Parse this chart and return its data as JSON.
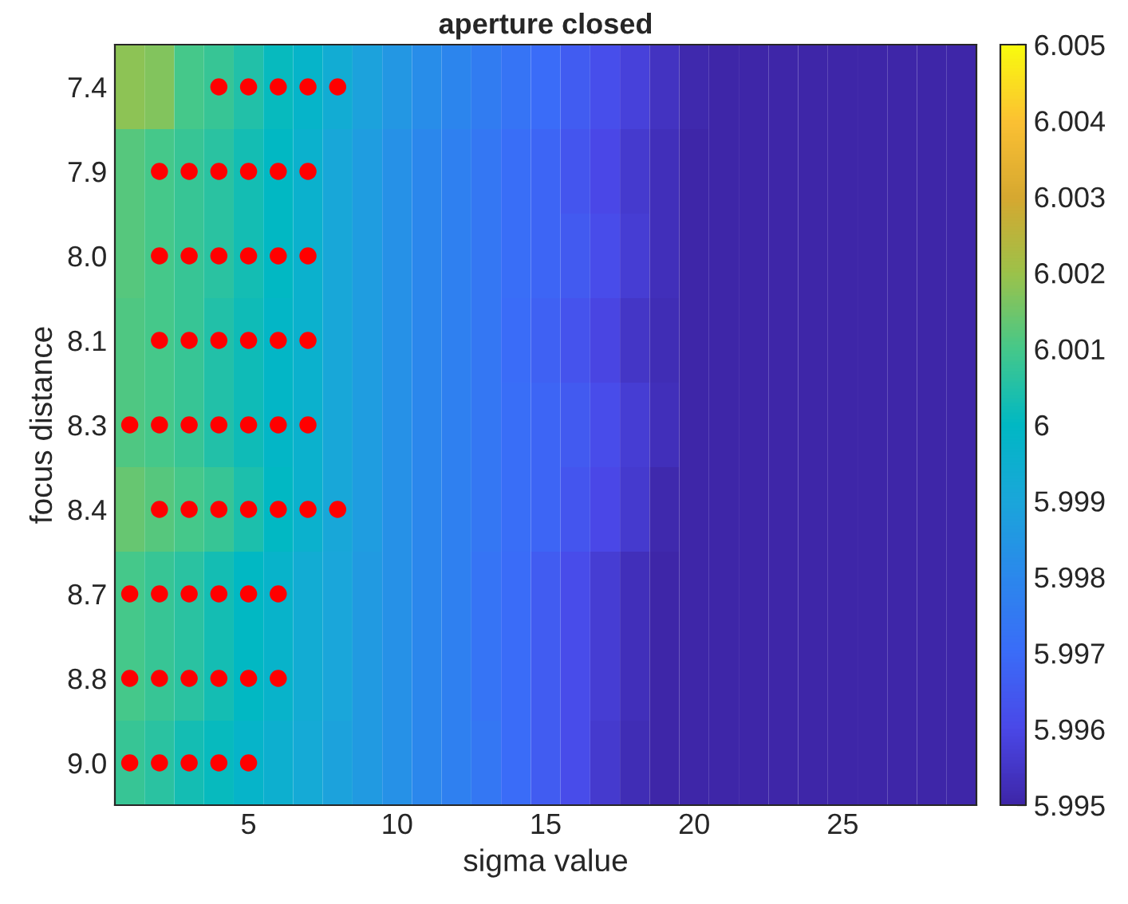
{
  "chart_data": {
    "type": "heatmap",
    "title": "aperture closed",
    "xlabel": "sigma value",
    "ylabel": "focus distance",
    "x": [
      1,
      2,
      3,
      4,
      5,
      6,
      7,
      8,
      9,
      10,
      11,
      12,
      13,
      14,
      15,
      16,
      17,
      18,
      19,
      20,
      21,
      22,
      23,
      24,
      25,
      26,
      27,
      28,
      29
    ],
    "xlim": [
      0.5,
      29.5
    ],
    "xticks": [
      5,
      10,
      15,
      20,
      25
    ],
    "orientation": "horizontal",
    "y_categories": [
      "7.4",
      "7.9",
      "8.0",
      "8.1",
      "8.3",
      "8.4",
      "8.7",
      "8.8",
      "9.0"
    ],
    "cells": [
      [
        6.0018,
        6.0017,
        6.001,
        6.0008,
        6.0005,
        6.0001,
        5.9998,
        5.9993,
        5.9989,
        5.9985,
        5.9982,
        5.9979,
        5.9976,
        5.9973,
        5.997,
        5.9966,
        5.9962,
        5.9958,
        5.9954,
        5.9951,
        5.995,
        5.995,
        5.995,
        5.995,
        5.995,
        5.995,
        5.995,
        5.995,
        5.995
      ],
      [
        6.0012,
        6.001,
        6.0008,
        6.0006,
        6.0003,
        6.0,
        5.9996,
        5.9991,
        5.9987,
        5.9983,
        5.998,
        5.9977,
        5.9974,
        5.9971,
        5.9968,
        5.9964,
        5.996,
        5.9956,
        5.9953,
        5.995,
        5.995,
        5.995,
        5.995,
        5.995,
        5.995,
        5.995,
        5.995,
        5.995,
        5.995
      ],
      [
        6.0012,
        6.001,
        6.0008,
        6.0006,
        6.0003,
        6.0,
        5.9996,
        5.9991,
        5.9987,
        5.9983,
        5.998,
        5.9977,
        5.9974,
        5.9971,
        5.9968,
        5.9965,
        5.9961,
        5.9957,
        5.9953,
        5.995,
        5.995,
        5.995,
        5.995,
        5.995,
        5.995,
        5.995,
        5.995,
        5.995,
        5.995
      ],
      [
        6.0011,
        6.001,
        6.0008,
        6.0005,
        6.0002,
        5.9999,
        5.9996,
        5.9991,
        5.9987,
        5.9983,
        5.998,
        5.9977,
        5.9974,
        5.997,
        5.9967,
        5.9963,
        5.9959,
        5.9955,
        5.9952,
        5.995,
        5.995,
        5.995,
        5.995,
        5.995,
        5.995,
        5.995,
        5.995,
        5.995,
        5.995
      ],
      [
        6.0011,
        6.001,
        6.0008,
        6.0005,
        6.0002,
        5.9999,
        5.9996,
        5.9991,
        5.9987,
        5.9983,
        5.998,
        5.9977,
        5.9974,
        5.9971,
        5.9968,
        5.9965,
        5.9961,
        5.9957,
        5.9953,
        5.995,
        5.995,
        5.995,
        5.995,
        5.995,
        5.995,
        5.995,
        5.995,
        5.995,
        5.995
      ],
      [
        6.0014,
        6.0012,
        6.001,
        6.0008,
        6.0004,
        6.0,
        5.9996,
        5.9991,
        5.9987,
        5.9983,
        5.998,
        5.9977,
        5.9974,
        5.9971,
        5.9968,
        5.9964,
        5.996,
        5.9956,
        5.9951,
        5.995,
        5.995,
        5.995,
        5.995,
        5.995,
        5.995,
        5.995,
        5.995,
        5.995,
        5.995
      ],
      [
        6.001,
        6.0008,
        6.0006,
        6.0003,
        6.0,
        5.9997,
        5.9993,
        5.999,
        5.9986,
        5.9983,
        5.998,
        5.9977,
        5.9973,
        5.997,
        5.9966,
        5.9961,
        5.9957,
        5.9953,
        5.995,
        5.995,
        5.995,
        5.995,
        5.995,
        5.995,
        5.995,
        5.995,
        5.995,
        5.995,
        5.995
      ],
      [
        6.001,
        6.0008,
        6.0006,
        6.0003,
        6.0,
        5.9997,
        5.9993,
        5.999,
        5.9986,
        5.9983,
        5.998,
        5.9977,
        5.9973,
        5.997,
        5.9966,
        5.9961,
        5.9957,
        5.9953,
        5.995,
        5.995,
        5.995,
        5.995,
        5.995,
        5.995,
        5.995,
        5.995,
        5.995,
        5.995,
        5.995
      ],
      [
        6.0008,
        6.0006,
        6.0003,
        6.0001,
        5.9998,
        5.9995,
        5.9992,
        5.9989,
        5.9986,
        5.9983,
        5.998,
        5.9977,
        5.9974,
        5.997,
        5.9966,
        5.9961,
        5.9956,
        5.9952,
        5.995,
        5.995,
        5.995,
        5.995,
        5.995,
        5.995,
        5.995,
        5.995,
        5.995,
        5.995,
        5.995
      ]
    ],
    "clim": [
      5.995,
      6.005
    ],
    "cticks": [
      5.995,
      5.996,
      5.997,
      5.998,
      5.999,
      6,
      6.001,
      6.002,
      6.003,
      6.004,
      6.005
    ],
    "series": [
      {
        "type": "scatter",
        "color": "#ff0000",
        "marker": "circle",
        "x": [
          "7.4",
          "7.4",
          "7.4",
          "7.4",
          "7.4",
          "7.9",
          "7.9",
          "7.9",
          "7.9",
          "7.9",
          "7.9",
          "8.0",
          "8.0",
          "8.0",
          "8.0",
          "8.0",
          "8.0",
          "8.1",
          "8.1",
          "8.1",
          "8.1",
          "8.1",
          "8.1",
          "8.3",
          "8.3",
          "8.3",
          "8.3",
          "8.3",
          "8.3",
          "8.3",
          "8.4",
          "8.4",
          "8.4",
          "8.4",
          "8.4",
          "8.4",
          "8.4",
          "8.7",
          "8.7",
          "8.7",
          "8.7",
          "8.7",
          "8.7",
          "8.8",
          "8.8",
          "8.8",
          "8.8",
          "8.8",
          "8.8",
          "9.0",
          "9.0",
          "9.0",
          "9.0",
          "9.0"
        ],
        "values": [
          4,
          5,
          6,
          7,
          8,
          2,
          3,
          4,
          5,
          6,
          7,
          2,
          3,
          4,
          5,
          6,
          7,
          2,
          3,
          4,
          5,
          6,
          7,
          1,
          2,
          3,
          4,
          5,
          6,
          7,
          2,
          3,
          4,
          5,
          6,
          7,
          8,
          1,
          2,
          3,
          4,
          5,
          6,
          1,
          2,
          3,
          4,
          5,
          6,
          1,
          2,
          3,
          4,
          5
        ]
      }
    ]
  }
}
